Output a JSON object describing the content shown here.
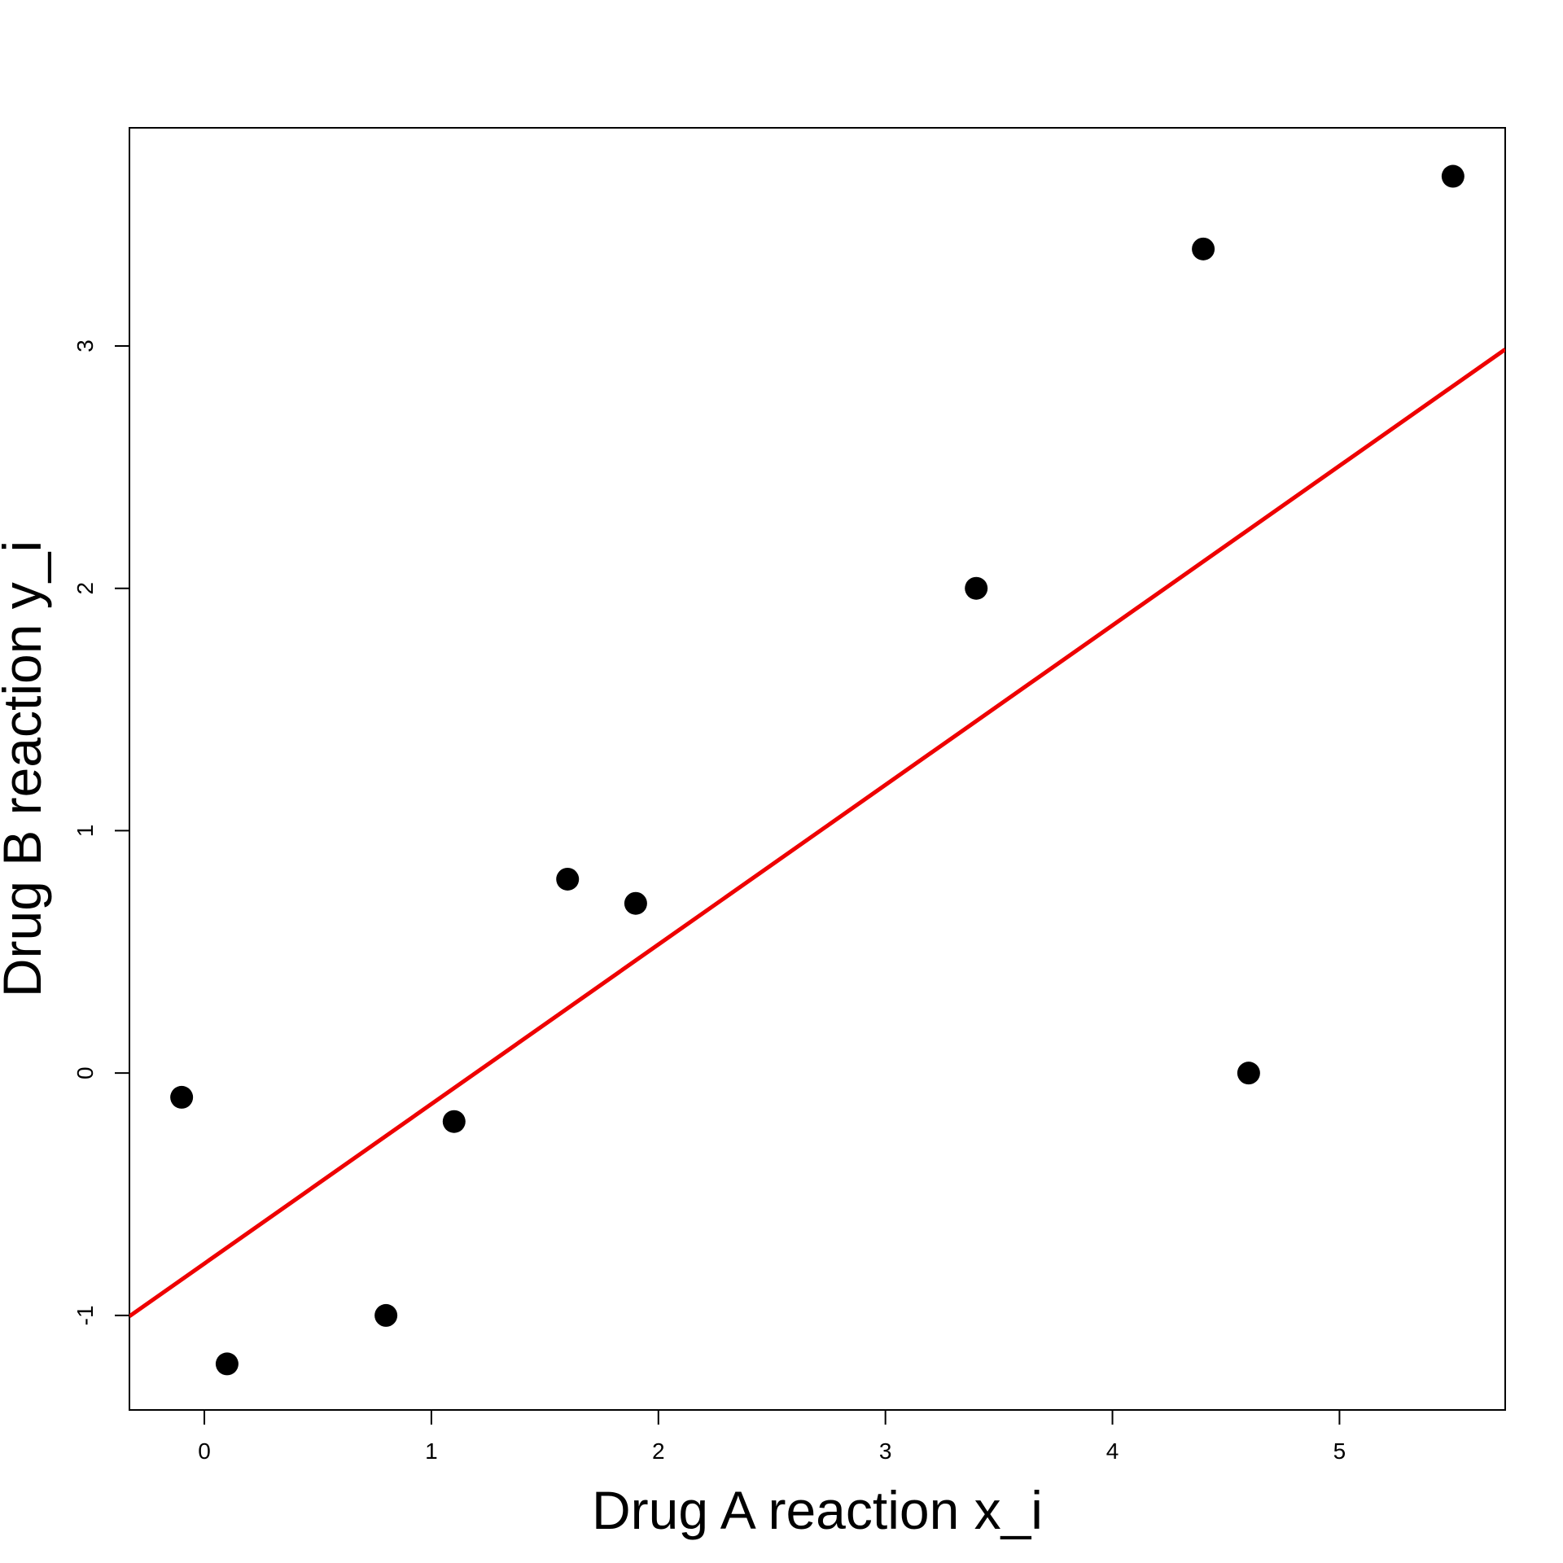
{
  "chart_data": {
    "type": "scatter",
    "title": "",
    "xlabel": "Drug A reaction x_i",
    "ylabel": "Drug B reaction y_i",
    "xlim": [
      -0.33,
      5.73
    ],
    "ylim": [
      -1.39,
      3.9
    ],
    "x_ticks": [
      0,
      1,
      2,
      3,
      4,
      5
    ],
    "y_ticks": [
      -1,
      0,
      1,
      2,
      3
    ],
    "x_tick_labels": [
      "0",
      "1",
      "2",
      "3",
      "4",
      "5"
    ],
    "y_tick_labels": [
      "-1",
      "0",
      "1",
      "2",
      "3"
    ],
    "grid": false,
    "legend": "none",
    "series": [
      {
        "marker": "filled-circle",
        "color": "#000000",
        "points": [
          {
            "x": -0.1,
            "y": -0.1
          },
          {
            "x": 0.1,
            "y": -1.2
          },
          {
            "x": 0.8,
            "y": -1.0
          },
          {
            "x": 1.1,
            "y": -0.2
          },
          {
            "x": 1.6,
            "y": 0.8
          },
          {
            "x": 1.9,
            "y": 0.7
          },
          {
            "x": 3.4,
            "y": 2.0
          },
          {
            "x": 4.4,
            "y": 3.4
          },
          {
            "x": 4.6,
            "y": 0.0
          },
          {
            "x": 5.5,
            "y": 3.7
          }
        ]
      }
    ],
    "fit_line": {
      "color": "#ee0000",
      "intercept": -0.7861,
      "slope": 0.6583
    }
  }
}
